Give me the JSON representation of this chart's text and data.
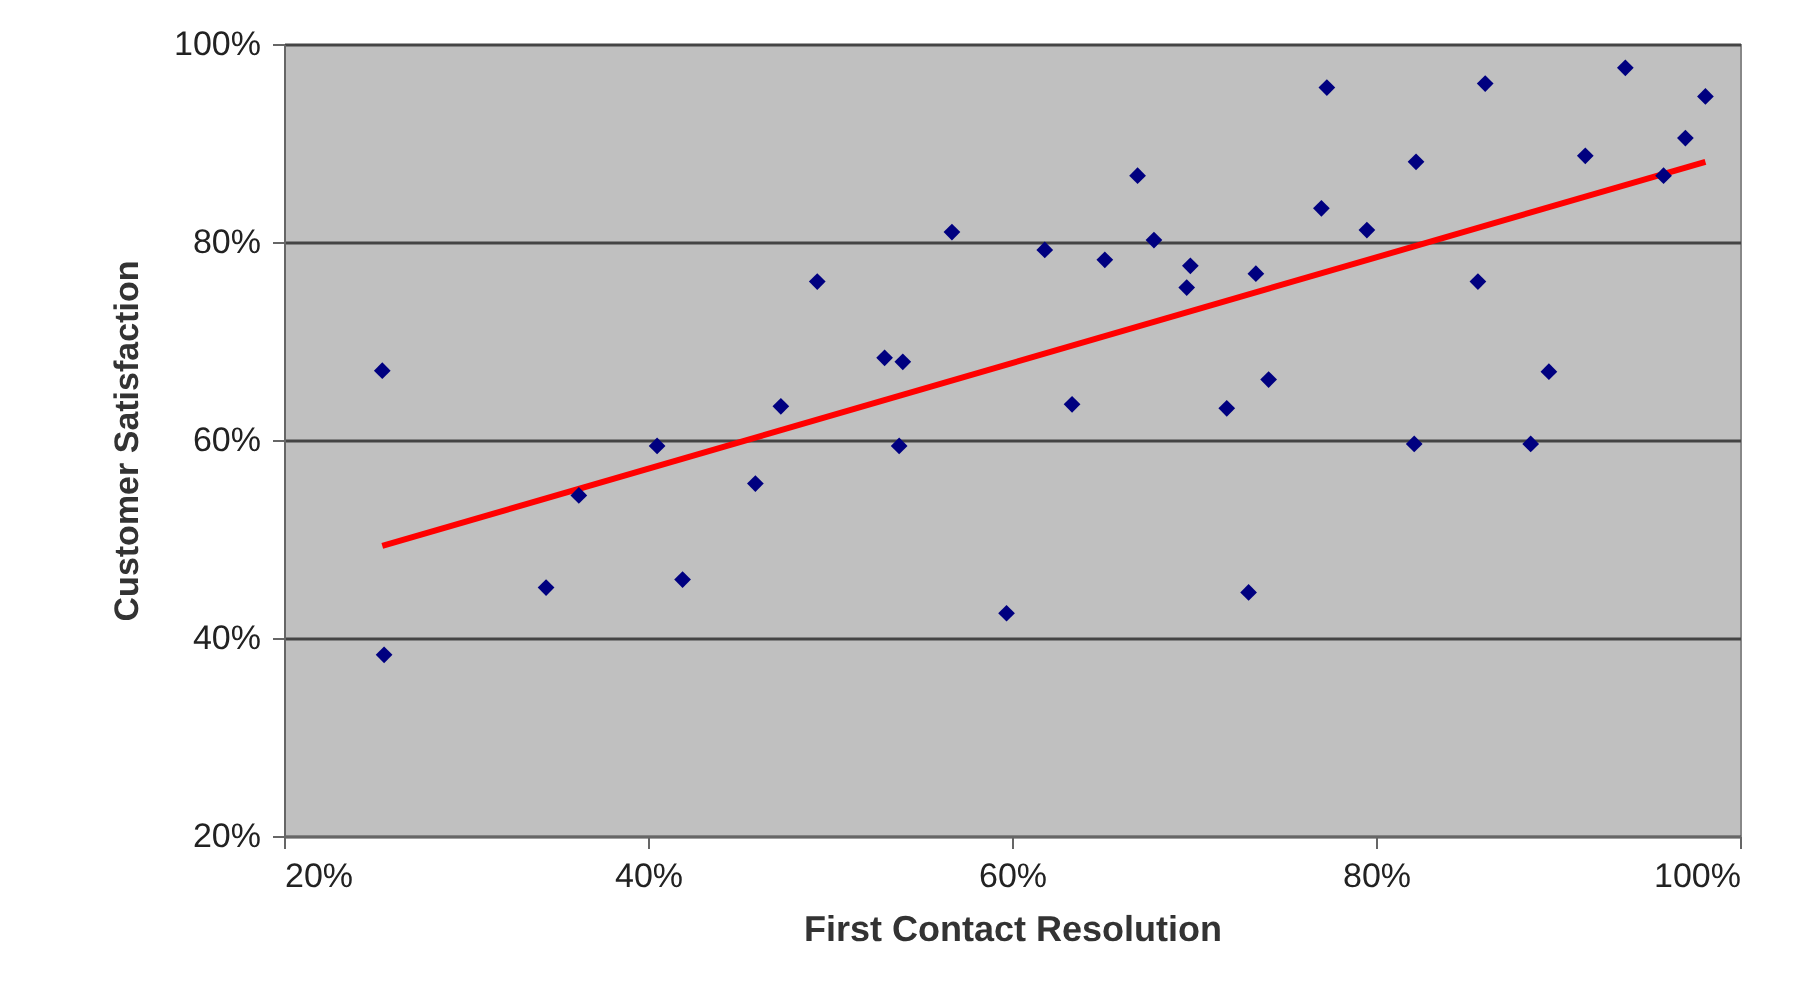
{
  "chart_data": {
    "type": "scatter",
    "xlabel": "First Contact Resolution",
    "ylabel": "Customer Satisfaction",
    "xlim": [
      20,
      100
    ],
    "xticks": [
      {
        "value": 20,
        "label": "20%"
      },
      {
        "value": 40,
        "label": "40%"
      },
      {
        "value": 60,
        "label": "60%"
      },
      {
        "value": 80,
        "label": "80%"
      },
      {
        "value": 100,
        "label": "100%"
      }
    ],
    "ylim": [
      20,
      100
    ],
    "yticks": [
      {
        "value": 20,
        "label": "20%"
      },
      {
        "value": 40,
        "label": "40%"
      },
      {
        "value": 60,
        "label": "60%"
      },
      {
        "value": 80,
        "label": "80%"
      },
      {
        "value": 100,
        "label": "100%"
      }
    ],
    "grid": "y",
    "series": [
      {
        "marker": "diamond",
        "color": "#000080",
        "x": [
          25.4,
          25.5,
          34.4,
          36.2,
          40.5,
          41.9,
          45.9,
          47.3,
          49.3,
          53,
          54,
          53.8,
          56.7,
          59.7,
          61.8,
          63.3,
          65.1,
          66.9,
          67.8,
          69.8,
          69.6,
          71.8,
          73,
          73.4,
          74.1,
          77.3,
          77,
          79.5,
          82.1,
          82.2,
          85.6,
          86,
          88.5,
          89.5,
          91.5,
          93.7,
          95.8,
          97,
          98.1
        ],
        "values": [
          67,
          38.3,
          45.1,
          54.4,
          59.4,
          45.9,
          55.6,
          63.4,
          76,
          68.3,
          67.9,
          59.4,
          81,
          42.5,
          79.2,
          63.6,
          78.2,
          86.7,
          80.2,
          77.6,
          75.4,
          63.2,
          44.6,
          76.8,
          66.1,
          95.6,
          83.4,
          81.2,
          59.6,
          88.1,
          76,
          96,
          59.6,
          66.9,
          88.7,
          97.6,
          86.7,
          90.5,
          94.7
        ]
      },
      {
        "type": "line",
        "marker": "none",
        "color": "#ff0000",
        "x": [
          25.4,
          98.1
        ],
        "values": [
          49.3,
          88.1
        ]
      }
    ]
  }
}
